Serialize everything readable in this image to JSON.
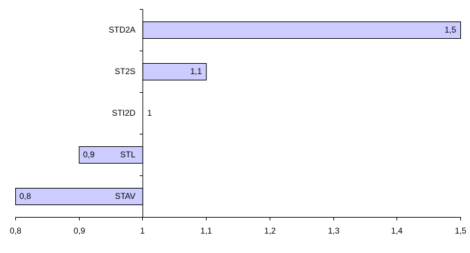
{
  "chart_data": {
    "type": "bar",
    "orientation": "horizontal",
    "baseline": 1,
    "categories": [
      "STD2A",
      "ST2S",
      "STI2D",
      "STL",
      "STAV"
    ],
    "values": [
      1.5,
      1.1,
      1,
      0.9,
      0.8
    ],
    "data_labels": [
      "1,5",
      "1,1",
      "1",
      "0,9",
      "0,8"
    ],
    "xlim": [
      0.8,
      1.5
    ],
    "xticks": [
      0.8,
      0.9,
      1,
      1.1,
      1.2,
      1.3,
      1.4,
      1.5
    ],
    "xtick_labels": [
      "0,8",
      "0,9",
      "1",
      "1,1",
      "1,2",
      "1,3",
      "1,4",
      "1,5"
    ],
    "title": "",
    "xlabel": "",
    "ylabel": "",
    "grid": false,
    "legend": "none",
    "bar_color": "#ccccff",
    "bar_border_color": "#000000"
  }
}
